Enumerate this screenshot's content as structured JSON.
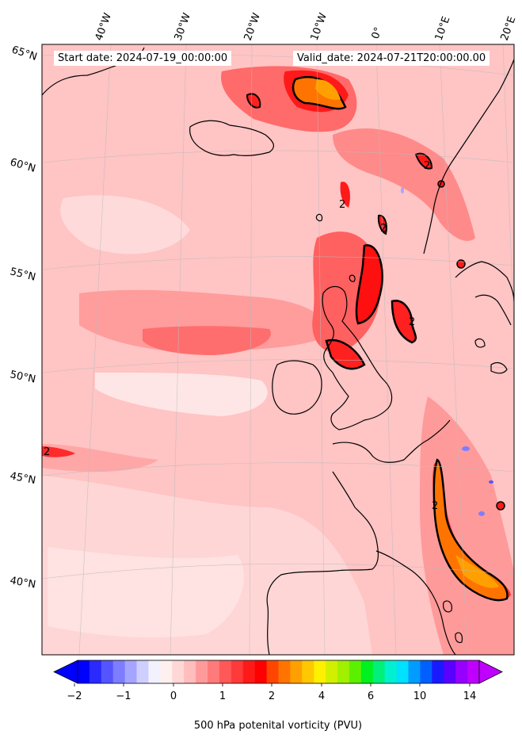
{
  "header": {
    "start_date": "Start date: 2024-07-19_00:00:00",
    "valid_date": "Valid_date: 2024-07-21T20:00:00.00"
  },
  "axes": {
    "lon_labels": [
      "40°W",
      "30°W",
      "20°W",
      "10°W",
      "0°",
      "10°E",
      "20°E"
    ],
    "lat_labels": [
      "65°N",
      "60°N",
      "55°N",
      "50°N",
      "45°N",
      "40°N"
    ]
  },
  "contour_label": "2",
  "colorbar": {
    "ticks": [
      "−2",
      "−1",
      "0",
      "1",
      "2",
      "4",
      "6",
      "10",
      "14"
    ],
    "label": "500 hPa potenital vorticity (PVU)",
    "colors": [
      "#0000ff",
      "#2a2aff",
      "#5555ff",
      "#7d7dff",
      "#a5a5ff",
      "#cfcfff",
      "#f2f2ff",
      "#fff0f0",
      "#ffd7d7",
      "#ffbdbd",
      "#ff9a9a",
      "#ff7a7a",
      "#ff5858",
      "#ff3a3a",
      "#ff1a1a",
      "#ff0000",
      "#ff4500",
      "#ff7400",
      "#ffa000",
      "#ffc800",
      "#fff000",
      "#d0f000",
      "#a0f000",
      "#5cf000",
      "#00f020",
      "#00f07a",
      "#00f0d0",
      "#00e0ff",
      "#009cff",
      "#0060ff",
      "#1a1aff",
      "#5a00ff",
      "#9600ff",
      "#c000ff"
    ]
  }
}
